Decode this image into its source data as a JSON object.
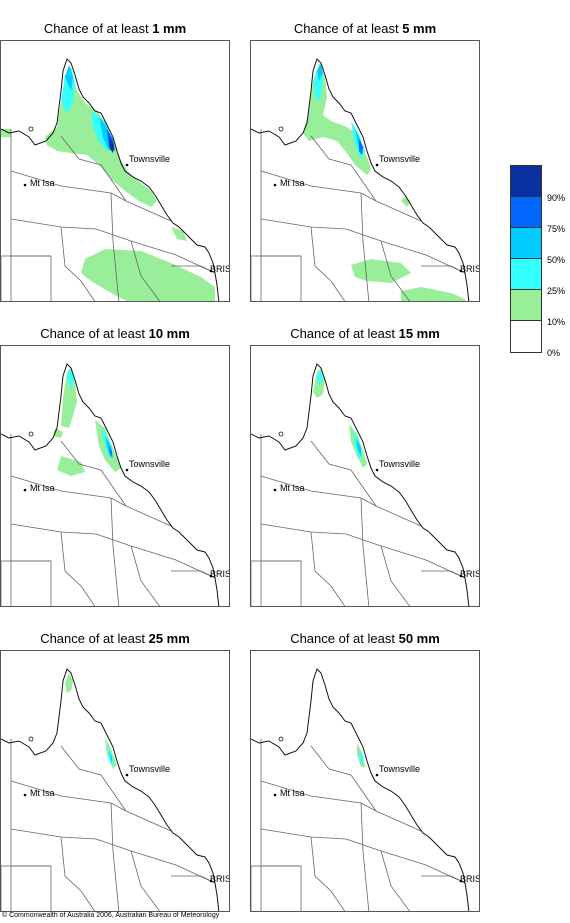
{
  "panels": [
    {
      "title_prefix": "Chance of at least ",
      "title_value": "1 mm",
      "level": 1
    },
    {
      "title_prefix": "Chance of at least ",
      "title_value": "5 mm",
      "level": 2
    },
    {
      "title_prefix": "Chance of at least ",
      "title_value": "10 mm",
      "level": 3
    },
    {
      "title_prefix": "Chance of at least ",
      "title_value": "15 mm",
      "level": 4
    },
    {
      "title_prefix": "Chance of at least ",
      "title_value": "25 mm",
      "level": 5
    },
    {
      "title_prefix": "Chance of at least ",
      "title_value": "50 mm",
      "level": 6
    }
  ],
  "places": {
    "townsville": "Townsville",
    "mt_isa": "Mt Isa",
    "brisbane": "BRIS"
  },
  "legend": {
    "labels": [
      "90%",
      "75%",
      "50%",
      "25%",
      "10%",
      "0%"
    ],
    "colors": [
      "#0a2f9e",
      "#0066ff",
      "#00ccff",
      "#33ffff",
      "#99ee99",
      "#ffffff"
    ]
  },
  "copyright": "© Commonwealth of Australia 2006, Australian Bureau of Meteorology"
}
